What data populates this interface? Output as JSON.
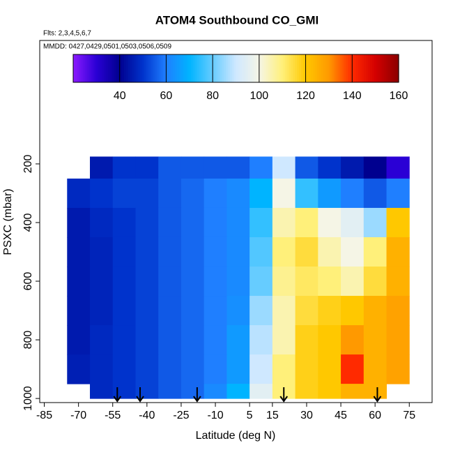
{
  "chart_data": {
    "type": "heatmap",
    "title": "ATOM4 Southbound CO_GMI",
    "subtitle": "Flts: 2,3,4,5,6,7",
    "annotation": "MMDD: 0427,0429,0501,0503,0506,0509",
    "xlabel": "Latitude (deg N)",
    "ylabel": "PSXC (mbar)",
    "xlim": [
      -87,
      85
    ],
    "xticks": [
      -85,
      -70,
      -55,
      -40,
      -25,
      -10,
      5,
      15,
      30,
      45,
      60,
      75
    ],
    "ylim": [
      1014,
      -221
    ],
    "yticks": [
      200,
      400,
      600,
      800,
      1000
    ],
    "x_edges": [
      -75,
      -65,
      -55,
      -45,
      -35,
      -25,
      -15,
      -5,
      5,
      15,
      25,
      35,
      45,
      55,
      65,
      75
    ],
    "y_edges": [
      175,
      250,
      350,
      450,
      550,
      650,
      750,
      850,
      950,
      1000
    ],
    "z": [
      [
        null,
        45,
        50,
        50,
        55,
        55,
        55,
        55,
        60,
        90,
        55,
        50,
        45,
        40,
        30
      ],
      [
        48,
        50,
        52,
        52,
        55,
        57,
        60,
        62,
        70,
        100,
        75,
        65,
        60,
        55,
        60
      ],
      [
        45,
        48,
        50,
        52,
        55,
        57,
        60,
        62,
        75,
        105,
        110,
        100,
        95,
        85,
        120
      ],
      [
        45,
        47,
        50,
        52,
        55,
        57,
        60,
        62,
        78,
        110,
        115,
        105,
        100,
        110,
        125
      ],
      [
        45,
        47,
        50,
        52,
        55,
        57,
        60,
        62,
        80,
        108,
        112,
        110,
        105,
        115,
        125
      ],
      [
        45,
        47,
        50,
        52,
        55,
        57,
        60,
        63,
        85,
        105,
        115,
        118,
        120,
        125,
        128
      ],
      [
        45,
        48,
        50,
        52,
        55,
        57,
        60,
        65,
        88,
        105,
        118,
        120,
        130,
        125,
        128
      ],
      [
        46,
        48,
        50,
        52,
        55,
        57,
        60,
        65,
        90,
        110,
        118,
        120,
        140,
        125,
        128
      ],
      [
        null,
        48,
        50,
        52,
        55,
        57,
        62,
        70,
        95,
        110,
        118,
        120,
        125,
        125,
        null
      ]
    ],
    "clim": [
      20,
      160
    ],
    "cticks": [
      40,
      60,
      80,
      100,
      120,
      140,
      160
    ],
    "colorscale": [
      "#8c1aff",
      "#2a00d5",
      "#00008f",
      "#0033cc",
      "#1f7fff",
      "#00b4ff",
      "#66ccff",
      "#cfe8ff",
      "#f5f5e6",
      "#fff07a",
      "#ffc800",
      "#ff9900",
      "#ff2a00",
      "#d40000",
      "#8b0000"
    ],
    "arrows": [
      -53,
      -43,
      -18,
      20,
      61
    ]
  }
}
